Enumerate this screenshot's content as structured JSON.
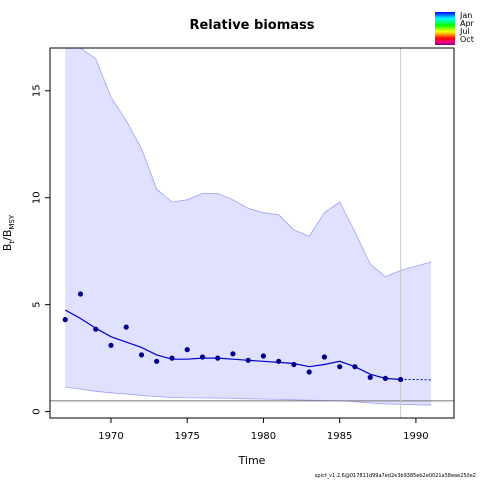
{
  "chart_data": {
    "type": "line",
    "title": "Relative biomass",
    "xlabel": "Time",
    "ylabel_main": "B",
    "ylabel_sub1": "t",
    "ylabel_mid": "/B",
    "ylabel_sub2": "MSY",
    "xlim": [
      1966.0,
      1992.5
    ],
    "ylim": [
      -0.3,
      17.0
    ],
    "xticks": [
      1970,
      1975,
      1980,
      1985,
      1990
    ],
    "yticks": [
      0,
      5,
      10,
      15
    ],
    "grid": false,
    "legend_position": "top-right",
    "legend": [
      {
        "label": "Jan"
      },
      {
        "label": "Apr"
      },
      {
        "label": "Jul"
      },
      {
        "label": "Oct"
      }
    ],
    "reference_line_y": 0.5,
    "vertical_line_x": 1989,
    "observations": {
      "x": [
        1967,
        1968,
        1969,
        1970,
        1971,
        1972,
        1973,
        1974,
        1975,
        1976,
        1977,
        1978,
        1979,
        1980,
        1981,
        1982,
        1983,
        1984,
        1985,
        1986,
        1987,
        1988,
        1989
      ],
      "y": [
        4.3,
        5.5,
        3.85,
        3.1,
        3.95,
        2.65,
        2.35,
        2.5,
        2.9,
        2.55,
        2.5,
        2.7,
        2.4,
        2.6,
        2.35,
        2.2,
        1.85,
        2.55,
        2.1,
        2.1,
        1.6,
        1.55,
        1.5
      ]
    },
    "estimate": {
      "x": [
        1967,
        1968,
        1969,
        1970,
        1971,
        1972,
        1973,
        1974,
        1975,
        1976,
        1977,
        1978,
        1979,
        1980,
        1981,
        1982,
        1983,
        1984,
        1985,
        1986,
        1987,
        1988,
        1989
      ],
      "y": [
        4.75,
        4.35,
        3.9,
        3.5,
        3.25,
        3.0,
        2.65,
        2.45,
        2.45,
        2.5,
        2.5,
        2.45,
        2.4,
        2.35,
        2.3,
        2.25,
        2.1,
        2.2,
        2.35,
        2.1,
        1.75,
        1.55,
        1.5
      ]
    },
    "prediction": {
      "x": [
        1989,
        1990,
        1991
      ],
      "y": [
        1.5,
        1.5,
        1.48
      ]
    },
    "ci_upper": {
      "x": [
        1967,
        1968,
        1969,
        1970,
        1971,
        1972,
        1973,
        1974,
        1975,
        1976,
        1977,
        1978,
        1979,
        1980,
        1981,
        1982,
        1983,
        1984,
        1985,
        1986,
        1987,
        1988,
        1989,
        1990,
        1991
      ],
      "y": [
        17.0,
        17.0,
        16.5,
        14.7,
        13.6,
        12.3,
        10.4,
        9.8,
        9.9,
        10.2,
        10.2,
        9.9,
        9.5,
        9.3,
        9.2,
        8.5,
        8.2,
        9.3,
        9.8,
        8.4,
        6.9,
        6.3,
        6.6,
        6.8,
        7.0
      ]
    },
    "ci_lower": {
      "x": [
        1967,
        1968,
        1969,
        1970,
        1971,
        1972,
        1973,
        1974,
        1975,
        1976,
        1977,
        1978,
        1979,
        1980,
        1981,
        1982,
        1983,
        1984,
        1985,
        1986,
        1987,
        1988,
        1989,
        1990,
        1991
      ],
      "y": [
        1.15,
        1.05,
        0.95,
        0.88,
        0.82,
        0.75,
        0.7,
        0.66,
        0.64,
        0.64,
        0.63,
        0.62,
        0.6,
        0.59,
        0.57,
        0.55,
        0.53,
        0.52,
        0.51,
        0.46,
        0.4,
        0.36,
        0.34,
        0.32,
        0.3
      ]
    },
    "colors": {
      "ci_fill": "#e0e0ff",
      "ci_line": "#a0a0f8",
      "estimate_line": "#0000cc",
      "points": "#00008b",
      "reference_line": "#777777",
      "vertical_line": "#c8c8c8",
      "legend_gradient": [
        "#0000ff",
        "#0080ff",
        "#00ffff",
        "#00ff80",
        "#00ff00",
        "#80ff00",
        "#ffff00",
        "#ff8000",
        "#ff0000",
        "#ff0080",
        "#800080"
      ]
    },
    "footnote": "spict_v1.2.6@017811d99a7ed2e3b9385eb2e0021a58eae250e2"
  }
}
